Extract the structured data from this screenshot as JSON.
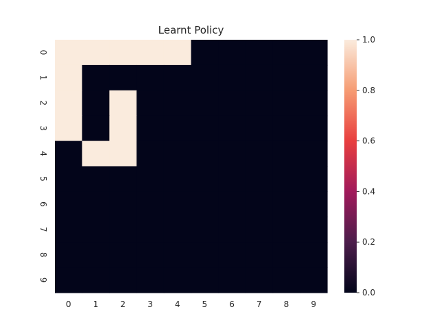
{
  "chart_data": {
    "type": "heatmap",
    "title": "Learnt Policy",
    "xlabel": "",
    "ylabel": "",
    "x_categories": [
      "0",
      "1",
      "2",
      "3",
      "4",
      "5",
      "6",
      "7",
      "8",
      "9"
    ],
    "y_categories": [
      "0",
      "1",
      "2",
      "3",
      "4",
      "5",
      "6",
      "7",
      "8",
      "9"
    ],
    "values": [
      [
        1,
        1,
        1,
        1,
        1,
        0,
        0,
        0,
        0,
        0
      ],
      [
        1,
        0,
        0,
        0,
        0,
        0,
        0,
        0,
        0,
        0
      ],
      [
        1,
        0,
        1,
        0,
        0,
        0,
        0,
        0,
        0,
        0
      ],
      [
        1,
        0,
        1,
        0,
        0,
        0,
        0,
        0,
        0,
        0
      ],
      [
        0,
        1,
        1,
        0,
        0,
        0,
        0,
        0,
        0,
        0
      ],
      [
        0,
        0,
        0,
        0,
        0,
        0,
        0,
        0,
        0,
        0
      ],
      [
        0,
        0,
        0,
        0,
        0,
        0,
        0,
        0,
        0,
        0
      ],
      [
        0,
        0,
        0,
        0,
        0,
        0,
        0,
        0,
        0,
        0
      ],
      [
        0,
        0,
        0,
        0,
        0,
        0,
        0,
        0,
        0,
        0
      ],
      [
        0,
        0,
        0,
        0,
        0,
        0,
        0,
        0,
        0,
        0
      ]
    ],
    "colorbar": {
      "range": [
        0.0,
        1.0
      ],
      "ticks": [
        "0.0",
        "0.2",
        "0.4",
        "0.6",
        "0.8",
        "1.0"
      ],
      "colormap": "rocket",
      "stops": [
        "#03051a",
        "#4c1d4b",
        "#a11a5b",
        "#e83f3f",
        "#f69c73",
        "#faebdd"
      ]
    },
    "grid": false
  }
}
